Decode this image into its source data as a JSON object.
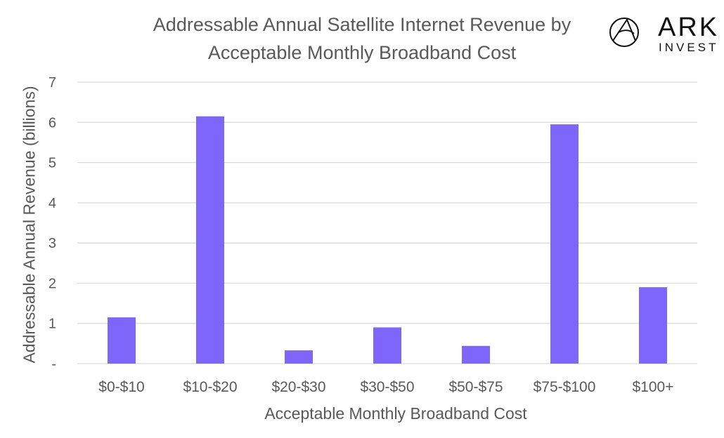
{
  "chart_data": {
    "type": "bar",
    "title_line1": "Addressable Annual Satellite Internet Revenue by",
    "title_line2": "Acceptable Monthly Broadband Cost",
    "xlabel": "Acceptable Monthly Broadband Cost",
    "ylabel": "Addressable Annual Revenue (billions)",
    "categories": [
      "$0-$10",
      "$10-$20",
      "$20-$30",
      "$30-$50",
      "$50-$75",
      "$75-$100",
      "$100+"
    ],
    "values": [
      1.15,
      6.15,
      0.33,
      0.9,
      0.44,
      5.95,
      1.9
    ],
    "ylim": [
      0,
      7
    ],
    "yticks": [
      "-",
      "1",
      "2",
      "3",
      "4",
      "5",
      "6",
      "7"
    ],
    "grid": true,
    "legend": "none",
    "bar_color": "#7F66FA"
  },
  "logo": {
    "name": "ark-invest-logo",
    "line1": "ARK",
    "line2": "INVEST"
  }
}
